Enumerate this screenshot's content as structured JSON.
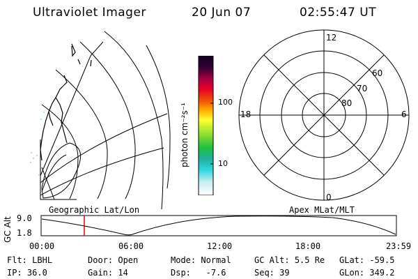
{
  "header": {
    "instrument": "Ultraviolet Imager",
    "date": "20 Jun 07",
    "time": "02:55:47 UT"
  },
  "colorbar": {
    "unit_label": "photon cm⁻²s⁻¹",
    "ticks": [
      "100",
      "10"
    ]
  },
  "polar": {
    "mlt_labels": {
      "top": "12",
      "left": "18",
      "right": "6",
      "bottom": "0"
    },
    "lat_labels": [
      "60",
      "70",
      "80"
    ]
  },
  "panels": {
    "left_title": "Geographic Lat/Lon",
    "right_title": "Apex MLat/MLT"
  },
  "timeline": {
    "axis_title": "GC Alt",
    "y_ticks": [
      "9.0",
      "1.8"
    ],
    "x_ticks": [
      "00:00",
      "06:00",
      "12:00",
      "18:00",
      "23:59"
    ],
    "marker_color": "#dd0000"
  },
  "status": {
    "row1": [
      {
        "label": "Flt:",
        "value": "LBHL"
      },
      {
        "label": "Door:",
        "value": "Open"
      },
      {
        "label": "Mode:",
        "value": "Normal"
      },
      {
        "label": "GC Alt:",
        "value": "5.5 Re"
      },
      {
        "label": "GLat:",
        "value": "-59.5"
      }
    ],
    "row2": [
      {
        "label": "IP:",
        "value": "36.0"
      },
      {
        "label": "Gain:",
        "value": "14"
      },
      {
        "label": "Dsp:",
        "value": "-7.6"
      },
      {
        "label": "Seq:",
        "value": "39"
      },
      {
        "label": "GLon:",
        "value": "349.2"
      }
    ]
  }
}
